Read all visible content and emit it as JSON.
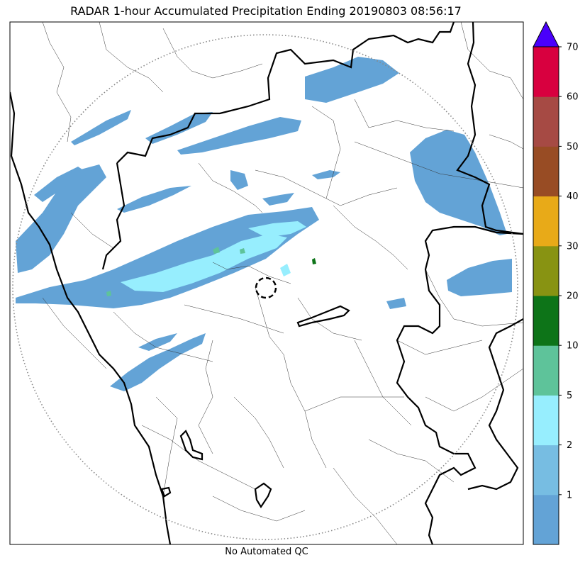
{
  "title": "RADAR 1-hour Accumulated Precipitation Ending 20190803 08:56:17",
  "footer": "No Automated QC",
  "colorbar": {
    "bins": [
      {
        "color": "#63a3d6"
      },
      {
        "color": "#77bde2"
      },
      {
        "color": "#97eefe"
      },
      {
        "color": "#5ec39a"
      },
      {
        "color": "#0d7418"
      },
      {
        "color": "#889312"
      },
      {
        "color": "#e8aa18"
      },
      {
        "color": "#984c24"
      },
      {
        "color": "#a64a44"
      },
      {
        "color": "#d8003f"
      }
    ],
    "tick_labels": [
      "1",
      "2",
      "5",
      "10",
      "20",
      "30",
      "40",
      "50",
      "60",
      "70"
    ],
    "extend_color": "#4a00fb"
  },
  "map": {
    "range_ring_style": "dotted",
    "radar_site_marker": "dashed-circle"
  }
}
